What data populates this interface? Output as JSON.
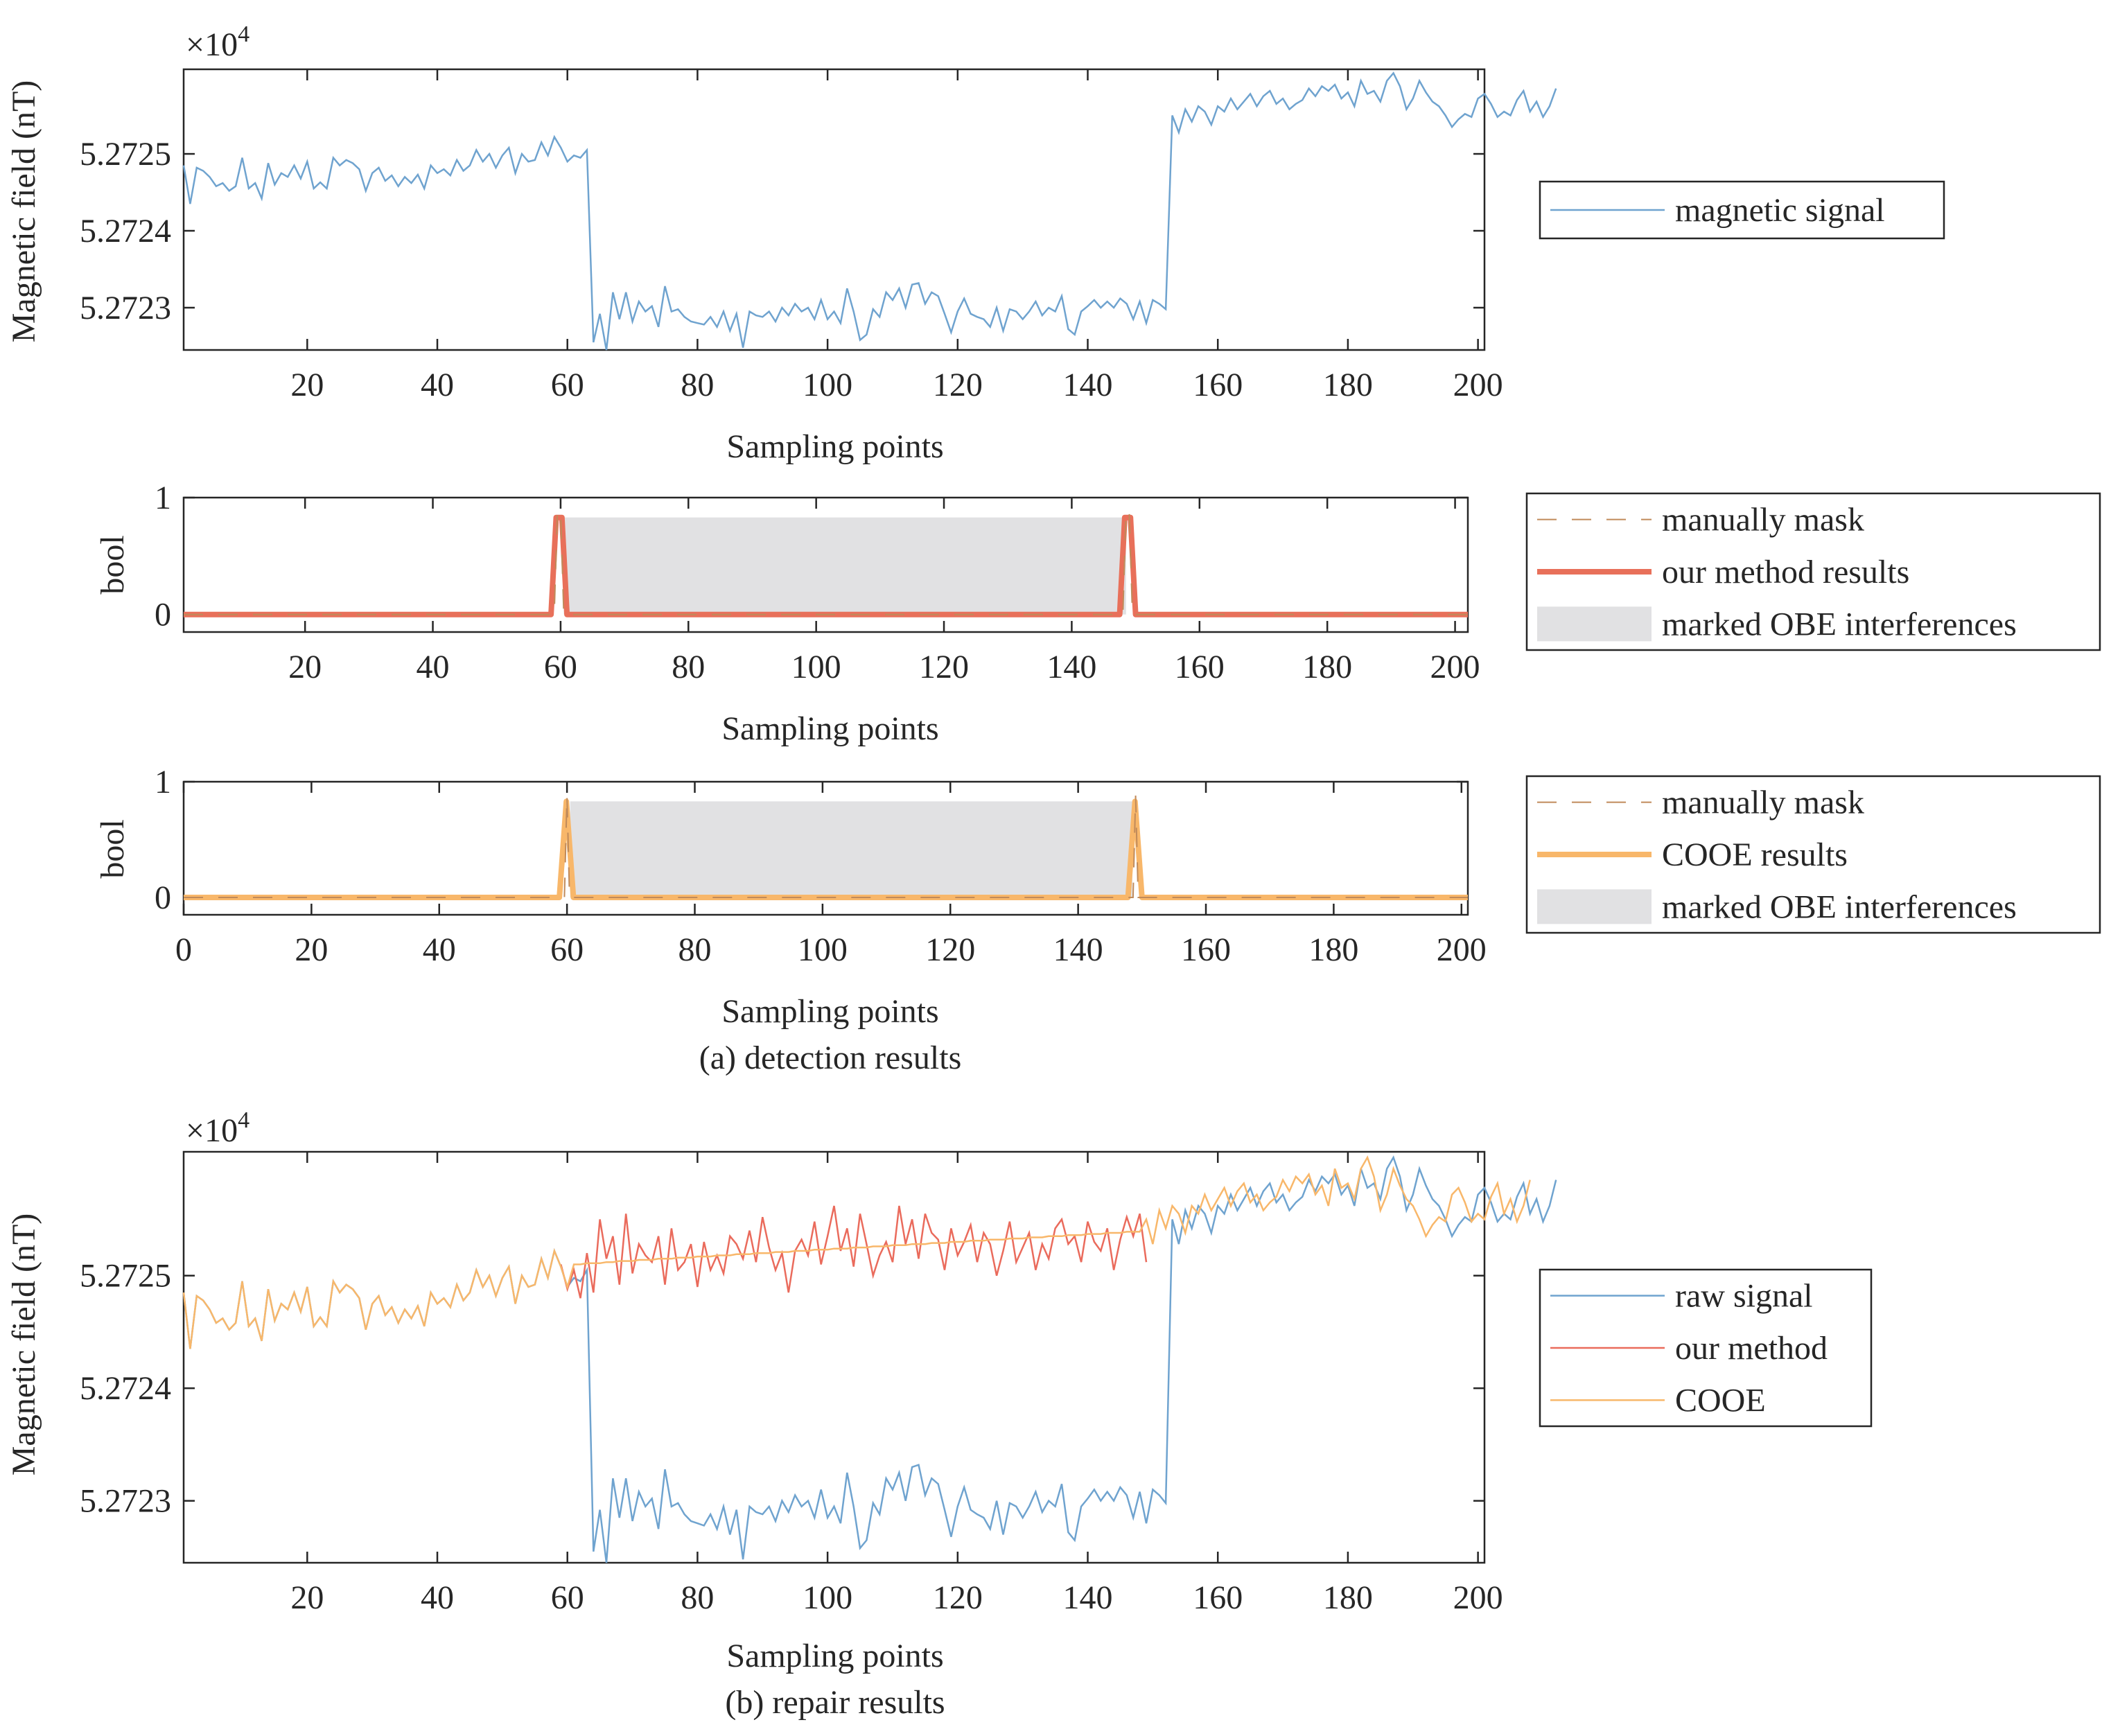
{
  "figure": {
    "caption_a": "(a) detection results",
    "caption_b": "(b) repair results"
  },
  "colors": {
    "signal_blue": "#6fa3cf",
    "method_red": "#e8705a",
    "method_red_thin": "#ea6b5c",
    "cooe_orange": "#f8b76a",
    "mask_brown": "#c08a5a",
    "shade_gray": "#e1e1e3",
    "axis": "#262626"
  },
  "chart_data": [
    {
      "id": "p1",
      "type": "line",
      "title": "",
      "xlabel": "Sampling points",
      "ylabel": "Magnetic field (nT)",
      "exponent_label": "×10",
      "exponent_power": "4",
      "xlim": [
        1,
        201
      ],
      "ylim": [
        52722.45,
        52726.1
      ],
      "xticks": [
        20,
        40,
        60,
        80,
        100,
        120,
        140,
        160,
        180,
        200
      ],
      "xtick_labels": [
        "20",
        "40",
        "60",
        "80",
        "100",
        "120",
        "140",
        "160",
        "180",
        "200"
      ],
      "yticks": [
        52723,
        52724,
        52725
      ],
      "ytick_labels": [
        "5.2723",
        "5.2724",
        "5.2725"
      ],
      "legend_position": "right",
      "legend": [
        {
          "label": "magnetic signal",
          "style": "line",
          "color": "#6fa3cf"
        }
      ],
      "series": [
        {
          "name": "magnetic signal",
          "color": "#6fa3cf",
          "source": "raw"
        }
      ]
    },
    {
      "id": "p2",
      "type": "line",
      "xlabel": "Sampling points",
      "ylabel": "bool",
      "xlim": [
        1,
        202
      ],
      "ylim": [
        -0.15,
        1.0
      ],
      "xticks": [
        20,
        40,
        60,
        80,
        100,
        120,
        140,
        160,
        180,
        200
      ],
      "xtick_labels": [
        "20",
        "40",
        "60",
        "80",
        "100",
        "120",
        "140",
        "160",
        "180",
        "200"
      ],
      "yticks": [
        0,
        1
      ],
      "ytick_labels": [
        "0",
        "1"
      ],
      "shaded_region": {
        "x": [
          60.5,
          148.5
        ],
        "y": [
          0,
          0.83
        ],
        "label": "marked OBE interferences"
      },
      "legend_position": "right",
      "legend": [
        {
          "label": "manually mask",
          "style": "dash",
          "color": "#c08a5a"
        },
        {
          "label": "our method results",
          "style": "thick",
          "color": "#e8705a"
        },
        {
          "label": "marked OBE interferences",
          "style": "patch",
          "color": "#e1e1e3"
        }
      ],
      "series": [
        {
          "name": "manually mask",
          "x": [
            1,
            59,
            59.5,
            60,
            60.5,
            148,
            148.5,
            149,
            149.5,
            202
          ],
          "y": [
            0,
            0,
            0.88,
            0.88,
            0,
            0,
            0.88,
            0.88,
            0,
            0
          ]
        },
        {
          "name": "our method results",
          "x": [
            1,
            58.5,
            59.3,
            60.2,
            61,
            147.5,
            148.3,
            149.2,
            150,
            202
          ],
          "y": [
            0,
            0,
            0.83,
            0.83,
            0,
            0,
            0.83,
            0.83,
            0,
            0
          ]
        }
      ]
    },
    {
      "id": "p3",
      "type": "line",
      "xlabel": "Sampling points",
      "ylabel": "bool",
      "xlim": [
        0,
        201
      ],
      "ylim": [
        -0.15,
        1.0
      ],
      "xticks": [
        0,
        20,
        40,
        60,
        80,
        100,
        120,
        140,
        160,
        180,
        200
      ],
      "xtick_labels": [
        "0",
        "20",
        "40",
        "60",
        "80",
        "100",
        "120",
        "140",
        "160",
        "180",
        "200"
      ],
      "yticks": [
        0,
        1
      ],
      "ytick_labels": [
        "0",
        "1"
      ],
      "shaded_region": {
        "x": [
          60.5,
          148.5
        ],
        "y": [
          0,
          0.83
        ],
        "label": "marked OBE interferences"
      },
      "legend_position": "right",
      "legend": [
        {
          "label": "manually mask",
          "style": "dash",
          "color": "#c08a5a"
        },
        {
          "label": "COOE results",
          "style": "thick",
          "color": "#f8b76a"
        },
        {
          "label": "marked OBE interferences",
          "style": "patch",
          "color": "#e1e1e3"
        }
      ],
      "series": [
        {
          "name": "manually mask",
          "x": [
            0,
            59.6,
            60,
            60.4,
            148.6,
            149,
            149.4,
            201
          ],
          "y": [
            0,
            0,
            0.88,
            0,
            0,
            0.88,
            0,
            0
          ]
        },
        {
          "name": "COOE results",
          "x": [
            0,
            58.8,
            59.9,
            61,
            147.8,
            148.9,
            150,
            201
          ],
          "y": [
            0,
            0,
            0.83,
            0,
            0,
            0.83,
            0,
            0
          ]
        }
      ]
    },
    {
      "id": "p4",
      "type": "line",
      "xlabel": "Sampling points",
      "ylabel": "Magnetic field (nT)",
      "exponent_label": "×10",
      "exponent_power": "4",
      "xlim": [
        1,
        201
      ],
      "ylim": [
        52722.45,
        52726.1
      ],
      "xticks": [
        20,
        40,
        60,
        80,
        100,
        120,
        140,
        160,
        180,
        200
      ],
      "xtick_labels": [
        "20",
        "40",
        "60",
        "80",
        "100",
        "120",
        "140",
        "160",
        "180",
        "200"
      ],
      "yticks": [
        52723,
        52724,
        52725
      ],
      "ytick_labels": [
        "5.2723",
        "5.2724",
        "5.2725"
      ],
      "legend_position": "right",
      "legend": [
        {
          "label": "raw signal",
          "style": "line",
          "color": "#6fa3cf"
        },
        {
          "label": "our method",
          "style": "line",
          "color": "#ea6b5c"
        },
        {
          "label": "COOE",
          "style": "line",
          "color": "#f8b76a"
        }
      ],
      "series": [
        {
          "name": "raw signal",
          "color": "#6fa3cf",
          "source": "raw"
        },
        {
          "name": "our method",
          "color": "#ea6b5c",
          "source": "repair_method",
          "x_range": [
            59,
            149
          ]
        },
        {
          "name": "COOE",
          "color": "#f8b76a",
          "source": "repair_cooe"
        }
      ]
    }
  ],
  "signal": {
    "raw": [
      52724.85,
      52724.35,
      52724.82,
      52724.78,
      52724.7,
      52724.58,
      52724.62,
      52724.52,
      52724.58,
      52724.95,
      52724.55,
      52724.62,
      52724.42,
      52724.88,
      52724.6,
      52724.75,
      52724.7,
      52724.85,
      52724.68,
      52724.9,
      52724.55,
      52724.63,
      52724.55,
      52724.95,
      52724.85,
      52724.92,
      52724.88,
      52724.8,
      52724.52,
      52724.75,
      52724.82,
      52724.65,
      52724.72,
      52724.58,
      52724.7,
      52724.62,
      52724.73,
      52724.55,
      52724.85,
      52724.75,
      52724.8,
      52724.72,
      52724.92,
      52724.78,
      52724.85,
      52725.05,
      52724.9,
      52725.0,
      52724.82,
      52724.98,
      52725.08,
      52724.75,
      52725.0,
      52724.9,
      52724.92,
      52725.15,
      52724.98,
      52725.22,
      52725.08,
      52724.9,
      52724.98,
      52724.95,
      52725.05,
      52722.55,
      52722.92,
      52722.45,
      52723.2,
      52722.85,
      52723.2,
      52722.82,
      52723.08,
      52722.95,
      52723.02,
      52722.75,
      52723.28,
      52722.95,
      52722.98,
      52722.88,
      52722.82,
      52722.8,
      52722.78,
      52722.88,
      52722.75,
      52722.95,
      52722.7,
      52722.92,
      52722.48,
      52722.95,
      52722.9,
      52722.88,
      52722.95,
      52722.82,
      52723.0,
      52722.9,
      52723.05,
      52722.95,
      52723.0,
      52722.85,
      52723.1,
      52722.85,
      52722.95,
      52722.8,
      52723.25,
      52722.95,
      52722.58,
      52722.65,
      52722.98,
      52722.88,
      52723.2,
      52723.1,
      52723.25,
      52723.0,
      52723.3,
      52723.32,
      52723.05,
      52723.2,
      52723.15,
      52722.92,
      52722.68,
      52722.95,
      52723.12,
      52722.92,
      52722.88,
      52722.85,
      52722.75,
      52723.0,
      52722.7,
      52722.98,
      52722.95,
      52722.85,
      52722.95,
      52723.08,
      52722.9,
      52723.0,
      52722.95,
      52723.15,
      52722.72,
      52722.65,
      52722.95,
      52723.02,
      52723.1,
      52723.0,
      52723.08,
      52723.0,
      52723.12,
      52723.05,
      52722.85,
      52723.08,
      52722.8,
      52723.1,
      52723.05,
      52722.98,
      52725.5,
      52725.28,
      52725.58,
      52725.42,
      52725.62,
      52725.55,
      52725.38,
      52725.62,
      52725.55,
      52725.72,
      52725.58,
      52725.68,
      52725.78,
      52725.62,
      52725.75,
      52725.82,
      52725.65,
      52725.72,
      52725.58,
      52725.65,
      52725.7,
      52725.85,
      52725.75,
      52725.88,
      52725.82,
      52725.9,
      52725.72,
      52725.8,
      52725.62,
      52725.95,
      52725.78,
      52725.82,
      52725.68,
      52725.95,
      52726.05,
      52725.88,
      52725.58,
      52725.72,
      52725.95,
      52725.8,
      52725.68,
      52725.62,
      52725.5,
      52725.35,
      52725.45,
      52725.52,
      52725.48,
      52725.72,
      52725.78,
      52725.65,
      52725.48,
      52725.55,
      52725.5,
      52725.7,
      52725.82,
      52725.55,
      52725.68,
      52725.48,
      52725.62,
      52725.85
    ],
    "repair_method": [
      52725.1,
      52724.88,
      52725.05,
      52724.8,
      52725.2,
      52724.85,
      52725.5,
      52725.15,
      52725.35,
      52724.92,
      52725.55,
      52725.02,
      52725.28,
      52725.18,
      52725.12,
      52725.35,
      52724.92,
      52725.42,
      52725.05,
      52725.12,
      52725.28,
      52724.9,
      52725.3,
      52725.05,
      52725.18,
      52725.02,
      52725.35,
      52725.28,
      52725.15,
      52725.4,
      52725.12,
      52725.52,
      52725.25,
      52725.05,
      52725.2,
      52724.85,
      52725.22,
      52725.32,
      52725.18,
      52725.48,
      52725.1,
      52725.35,
      52725.62,
      52725.22,
      52725.42,
      52725.08,
      52725.55,
      52725.28,
      52725.0,
      52725.18,
      52725.3,
      52725.12,
      52725.62,
      52725.28,
      52725.5,
      52725.15,
      52725.55,
      52725.38,
      52725.32,
      52725.05,
      52725.42,
      52725.18,
      52725.3,
      52725.45,
      52725.12,
      52725.38,
      52725.28,
      52725.0,
      52725.22,
      52725.48,
      52725.12,
      52725.25,
      52725.38,
      52725.05,
      52725.28,
      52725.15,
      52725.42,
      52725.5,
      52725.28,
      52725.35,
      52725.12,
      52725.48,
      52725.3,
      52725.22,
      52725.42,
      52725.05,
      52725.32,
      52725.52,
      52725.35,
      52725.55,
      52725.12
    ],
    "repair_cooe": [
      52724.85,
      52724.35,
      52724.82,
      52724.78,
      52724.7,
      52724.58,
      52724.62,
      52724.52,
      52724.58,
      52724.95,
      52724.55,
      52724.62,
      52724.42,
      52724.88,
      52724.6,
      52724.75,
      52724.7,
      52724.85,
      52724.68,
      52724.9,
      52724.55,
      52724.63,
      52724.55,
      52724.95,
      52724.85,
      52724.92,
      52724.88,
      52724.8,
      52724.52,
      52724.75,
      52724.82,
      52724.65,
      52724.72,
      52724.58,
      52724.7,
      52724.62,
      52724.73,
      52724.55,
      52724.85,
      52724.75,
      52724.8,
      52724.72,
      52724.92,
      52724.78,
      52724.85,
      52725.05,
      52724.9,
      52725.0,
      52724.82,
      52724.98,
      52725.08,
      52724.75,
      52725.0,
      52724.9,
      52724.92,
      52725.15,
      52724.98,
      52725.22,
      52725.08,
      52724.9,
      52725.1,
      52725.1,
      52725.11,
      52725.11,
      52725.11,
      52725.12,
      52725.12,
      52725.13,
      52725.13,
      52725.13,
      52725.14,
      52725.14,
      52725.14,
      52725.15,
      52725.15,
      52725.15,
      52725.16,
      52725.16,
      52725.16,
      52725.17,
      52725.17,
      52725.17,
      52725.18,
      52725.18,
      52725.18,
      52725.19,
      52725.19,
      52725.19,
      52725.2,
      52725.2,
      52725.2,
      52725.21,
      52725.21,
      52725.21,
      52725.22,
      52725.22,
      52725.22,
      52725.23,
      52725.23,
      52725.23,
      52725.24,
      52725.24,
      52725.24,
      52725.25,
      52725.25,
      52725.25,
      52725.26,
      52725.26,
      52725.26,
      52725.27,
      52725.27,
      52725.27,
      52725.28,
      52725.28,
      52725.28,
      52725.29,
      52725.29,
      52725.29,
      52725.3,
      52725.3,
      52725.3,
      52725.31,
      52725.31,
      52725.31,
      52725.32,
      52725.32,
      52725.32,
      52725.33,
      52725.33,
      52725.33,
      52725.34,
      52725.34,
      52725.34,
      52725.35,
      52725.35,
      52725.35,
      52725.36,
      52725.36,
      52725.36,
      52725.37,
      52725.37,
      52725.37,
      52725.38,
      52725.38,
      52725.38,
      52725.39,
      52725.39,
      52725.39,
      52725.5,
      52725.28,
      52725.58,
      52725.42,
      52725.62,
      52725.55,
      52725.38,
      52725.62,
      52725.55,
      52725.72,
      52725.58,
      52725.68,
      52725.78,
      52725.62,
      52725.75,
      52725.82,
      52725.65,
      52725.72,
      52725.58,
      52725.65,
      52725.7,
      52725.85,
      52725.75,
      52725.88,
      52725.82,
      52725.9,
      52725.72,
      52725.8,
      52725.62,
      52725.95,
      52725.78,
      52725.82,
      52725.68,
      52725.95,
      52726.05,
      52725.88,
      52725.58,
      52725.72,
      52725.95,
      52725.8,
      52725.68,
      52725.62,
      52725.5,
      52725.35,
      52725.45,
      52725.52,
      52725.48,
      52725.72,
      52725.78,
      52725.65,
      52725.48,
      52725.55,
      52725.5,
      52725.7,
      52725.82,
      52725.55,
      52725.68,
      52725.48,
      52725.62,
      52725.85
    ]
  }
}
